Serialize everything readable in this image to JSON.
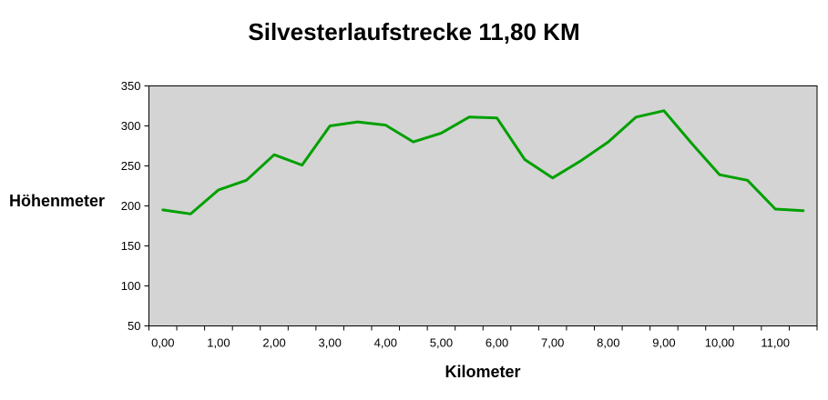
{
  "chart_data": {
    "type": "line",
    "title": "Silvesterlaufstrecke 11,80 KM",
    "xlabel": "Kilometer",
    "ylabel": "Höhenmeter",
    "x": [
      0.0,
      0.5,
      1.0,
      1.5,
      2.0,
      2.5,
      3.0,
      3.5,
      4.0,
      4.5,
      5.0,
      5.5,
      6.0,
      6.5,
      7.0,
      7.5,
      8.0,
      8.5,
      9.0,
      9.5,
      10.0,
      10.5,
      11.0,
      11.5
    ],
    "values": [
      195,
      190,
      220,
      232,
      264,
      251,
      300,
      305,
      301,
      280,
      291,
      311,
      310,
      258,
      235,
      256,
      280,
      311,
      319,
      278,
      239,
      232,
      196,
      194
    ],
    "x_tick_labels": [
      "0,00",
      "1,00",
      "2,00",
      "3,00",
      "4,00",
      "5,00",
      "6,00",
      "7,00",
      "8,00",
      "9,00",
      "10,00",
      "11,00"
    ],
    "y_ticks": [
      50,
      100,
      150,
      200,
      250,
      300,
      350
    ],
    "ylim": [
      50,
      350
    ],
    "grid": false,
    "legend": false,
    "line_color": "#00A000",
    "plot_bg": "#D4D4D4",
    "axis_color": "#000000",
    "page_bg": "#FFFFFF"
  }
}
